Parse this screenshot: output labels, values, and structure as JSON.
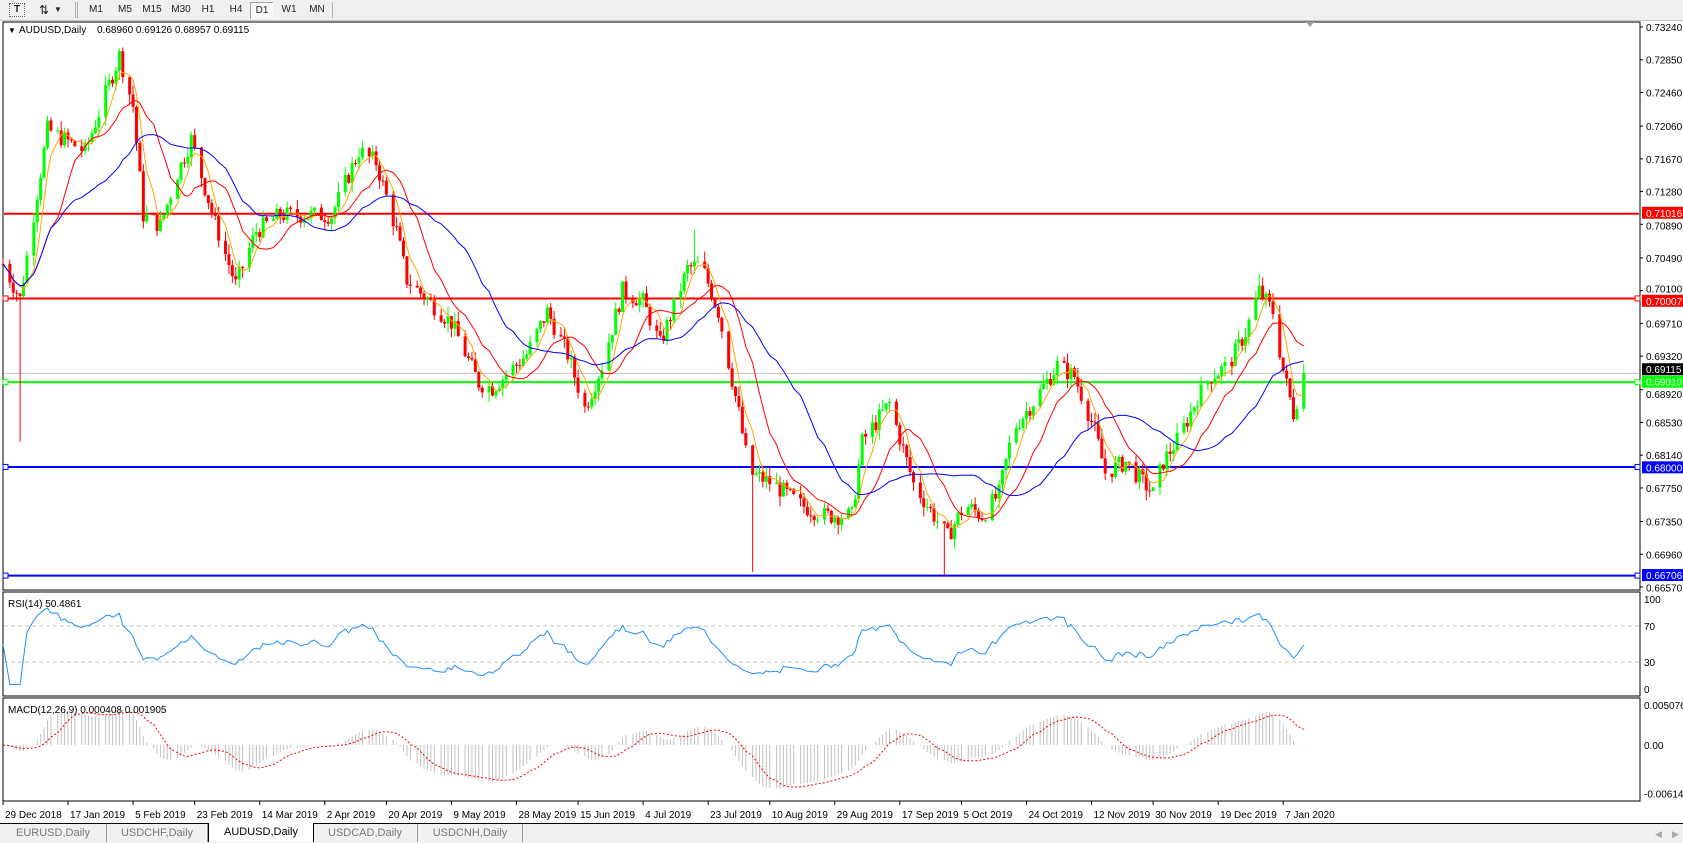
{
  "toolbar": {
    "icons": [
      "text-tool-icon",
      "arrows-tool-icon",
      "dropdown-arrow-icon"
    ],
    "timeframes": [
      "M1",
      "M5",
      "M15",
      "M30",
      "H1",
      "H4",
      "D1",
      "W1",
      "MN"
    ],
    "active_timeframe": "D1"
  },
  "chart_header": {
    "symbol": "AUDUSD,Daily",
    "ohlc": "0.68960 0.69126 0.68957 0.69115"
  },
  "colors": {
    "bull_candle": "#00ff00",
    "bear_candle": "#ff0000",
    "ma_fast": "#ffa500",
    "ma_mid": "#ff0000",
    "ma_slow": "#0000ff",
    "rsi_line": "#1e90ff",
    "macd_hist": "#c0c0c0",
    "macd_signal": "#ff0000"
  },
  "chart_data": [
    {
      "type": "candlestick",
      "symbol": "AUDUSD",
      "timeframe": "Daily",
      "ylim": [
        0.6657,
        0.7324
      ],
      "y_ticks": [
        "0.73240",
        "0.72850",
        "0.72460",
        "0.72060",
        "0.71670",
        "0.71280",
        "0.70890",
        "0.70490",
        "0.70100",
        "0.69710",
        "0.69320",
        "0.68920",
        "0.68530",
        "0.68140",
        "0.67750",
        "0.67350",
        "0.66960",
        "0.66570"
      ],
      "x_ticks": [
        {
          "date": "2018-12-29",
          "label": "29 Dec 2018"
        },
        {
          "date": "2019-01-17",
          "label": "17 Jan 2019"
        },
        {
          "date": "2019-02-05",
          "label": "5 Feb 2019"
        },
        {
          "date": "2019-02-23",
          "label": "23 Feb 2019"
        },
        {
          "date": "2019-03-14",
          "label": "14 Mar 2019"
        },
        {
          "date": "2019-04-02",
          "label": "2 Apr 2019"
        },
        {
          "date": "2019-04-20",
          "label": "20 Apr 2019"
        },
        {
          "date": "2019-05-09",
          "label": "9 May 2019"
        },
        {
          "date": "2019-05-28",
          "label": "28 May 2019"
        },
        {
          "date": "2019-06-15",
          "label": "15 Jun 2019"
        },
        {
          "date": "2019-07-04",
          "label": "4 Jul 2019"
        },
        {
          "date": "2019-07-23",
          "label": "23 Jul 2019"
        },
        {
          "date": "2019-08-10",
          "label": "10 Aug 2019"
        },
        {
          "date": "2019-08-29",
          "label": "29 Aug 2019"
        },
        {
          "date": "2019-09-17",
          "label": "17 Sep 2019"
        },
        {
          "date": "2019-10-05",
          "label": "5 Oct 2019"
        },
        {
          "date": "2019-10-24",
          "label": "24 Oct 2019"
        },
        {
          "date": "2019-11-12",
          "label": "12 Nov 2019"
        },
        {
          "date": "2019-11-30",
          "label": "30 Nov 2019"
        },
        {
          "date": "2019-12-19",
          "label": "19 Dec 2019"
        },
        {
          "date": "2020-01-07",
          "label": "7 Jan 2020"
        }
      ],
      "close_path": [
        [
          "2018-12-29",
          0.7042
        ],
        [
          "2019-01-03",
          0.7
        ],
        [
          "2019-01-11",
          0.7202
        ],
        [
          "2019-01-16",
          0.719
        ],
        [
          "2019-01-22",
          0.7176
        ],
        [
          "2019-02-01",
          0.729
        ],
        [
          "2019-02-05",
          0.723
        ],
        [
          "2019-02-08",
          0.71
        ],
        [
          "2019-02-13",
          0.7088
        ],
        [
          "2019-02-18",
          0.715
        ],
        [
          "2019-02-22",
          0.719
        ],
        [
          "2019-03-01",
          0.709
        ],
        [
          "2019-03-07",
          0.7017
        ],
        [
          "2019-03-13",
          0.7081
        ],
        [
          "2019-03-20",
          0.71
        ],
        [
          "2019-03-29",
          0.71
        ],
        [
          "2019-04-04",
          0.71
        ],
        [
          "2019-04-12",
          0.7176
        ],
        [
          "2019-04-17",
          0.7163
        ],
        [
          "2019-04-23",
          0.7081
        ],
        [
          "2019-04-26",
          0.7023
        ],
        [
          "2019-05-09",
          0.6972
        ],
        [
          "2019-05-17",
          0.69
        ],
        [
          "2019-05-21",
          0.6894
        ],
        [
          "2019-05-31",
          0.6934
        ],
        [
          "2019-06-06",
          0.6985
        ],
        [
          "2019-06-12",
          0.6934
        ],
        [
          "2019-06-17",
          0.687
        ],
        [
          "2019-06-22",
          0.6921
        ],
        [
          "2019-06-28",
          0.701
        ],
        [
          "2019-07-04",
          0.6997
        ],
        [
          "2019-07-09",
          0.6946
        ],
        [
          "2019-07-17",
          0.7036
        ],
        [
          "2019-07-21",
          0.7042
        ],
        [
          "2019-07-26",
          0.6985
        ],
        [
          "2019-08-01",
          0.6864
        ],
        [
          "2019-08-04",
          0.6793
        ],
        [
          "2019-08-11",
          0.678
        ],
        [
          "2019-08-19",
          0.6755
        ],
        [
          "2019-08-26",
          0.6742
        ],
        [
          "2019-09-03",
          0.6742
        ],
        [
          "2019-09-06",
          0.683
        ],
        [
          "2019-09-14",
          0.6876
        ],
        [
          "2019-09-21",
          0.678
        ],
        [
          "2019-09-27",
          0.6742
        ],
        [
          "2019-10-01",
          0.6717
        ],
        [
          "2019-10-06",
          0.6755
        ],
        [
          "2019-10-11",
          0.6742
        ],
        [
          "2019-10-16",
          0.6768
        ],
        [
          "2019-10-20",
          0.6844
        ],
        [
          "2019-10-27",
          0.6883
        ],
        [
          "2019-11-02",
          0.6921
        ],
        [
          "2019-11-07",
          0.6908
        ],
        [
          "2019-11-13",
          0.6844
        ],
        [
          "2019-11-16",
          0.6793
        ],
        [
          "2019-11-22",
          0.6806
        ],
        [
          "2019-11-30",
          0.6768
        ],
        [
          "2019-12-03",
          0.6806
        ],
        [
          "2019-12-08",
          0.6838
        ],
        [
          "2019-12-13",
          0.6883
        ],
        [
          "2019-12-17",
          0.6908
        ],
        [
          "2019-12-22",
          0.6921
        ],
        [
          "2019-12-27",
          0.696
        ],
        [
          "2019-12-31",
          0.701
        ],
        [
          "2020-01-04",
          0.6985
        ],
        [
          "2020-01-07",
          0.6915
        ],
        [
          "2020-01-10",
          0.6864
        ],
        [
          "2020-01-13",
          0.69115
        ]
      ],
      "wick_extremes": [
        [
          "2019-01-03",
          0.683
        ],
        [
          "2019-08-05",
          0.6675
        ],
        [
          "2019-09-30",
          0.6671
        ],
        [
          "2019-02-01",
          0.7297
        ],
        [
          "2019-07-19",
          0.7082
        ],
        [
          "2019-12-31",
          0.703
        ]
      ],
      "current_price": "0.69115",
      "moving_averages": [
        "orange fast MA",
        "red medium MA",
        "blue slow MA"
      ]
    },
    {
      "type": "line",
      "indicator": "RSI",
      "label": "RSI(14) 50.4861",
      "ylim": [
        0,
        100
      ],
      "y_ticks": [
        "100",
        "70",
        "30",
        "0"
      ],
      "levels": [
        70,
        30
      ]
    },
    {
      "type": "bar+line",
      "indicator": "MACD",
      "label": "MACD(12,26,9) 0.000408 0.001905",
      "ylim": [
        -0.006148,
        0.005076
      ],
      "y_ticks": [
        "0.005076",
        "0.00",
        "-0.006148"
      ]
    }
  ],
  "hlines": [
    {
      "price": 0.71016,
      "label": "0.71016",
      "color": "#ff0000",
      "left_handle": false,
      "right_handle": false
    },
    {
      "price": 0.70007,
      "label": "0.70007",
      "color": "#ff0000",
      "left_handle": true,
      "right_handle": true
    },
    {
      "price": 0.69115,
      "label": "0.69115",
      "color": "#c0c0c0",
      "label_bg": "#000000",
      "left_handle": false,
      "right_handle": false
    },
    {
      "price": 0.6901,
      "label": "0.69010",
      "color": "#00ff00",
      "left_handle": true,
      "right_handle": true
    },
    {
      "price": 0.68,
      "label": "0.68000",
      "color": "#0000ff",
      "left_handle": true,
      "right_handle": true
    },
    {
      "price": 0.66706,
      "label": "0.66706",
      "color": "#0000ff",
      "left_handle": true,
      "right_handle": true
    }
  ],
  "tabs": [
    {
      "label": "EURUSD,Daily",
      "active": false
    },
    {
      "label": "USDCHF,Daily",
      "active": false
    },
    {
      "label": "AUDUSD,Daily",
      "active": true
    },
    {
      "label": "USDCAD,Daily",
      "active": false
    },
    {
      "label": "USDCNH,Daily",
      "active": false
    }
  ]
}
